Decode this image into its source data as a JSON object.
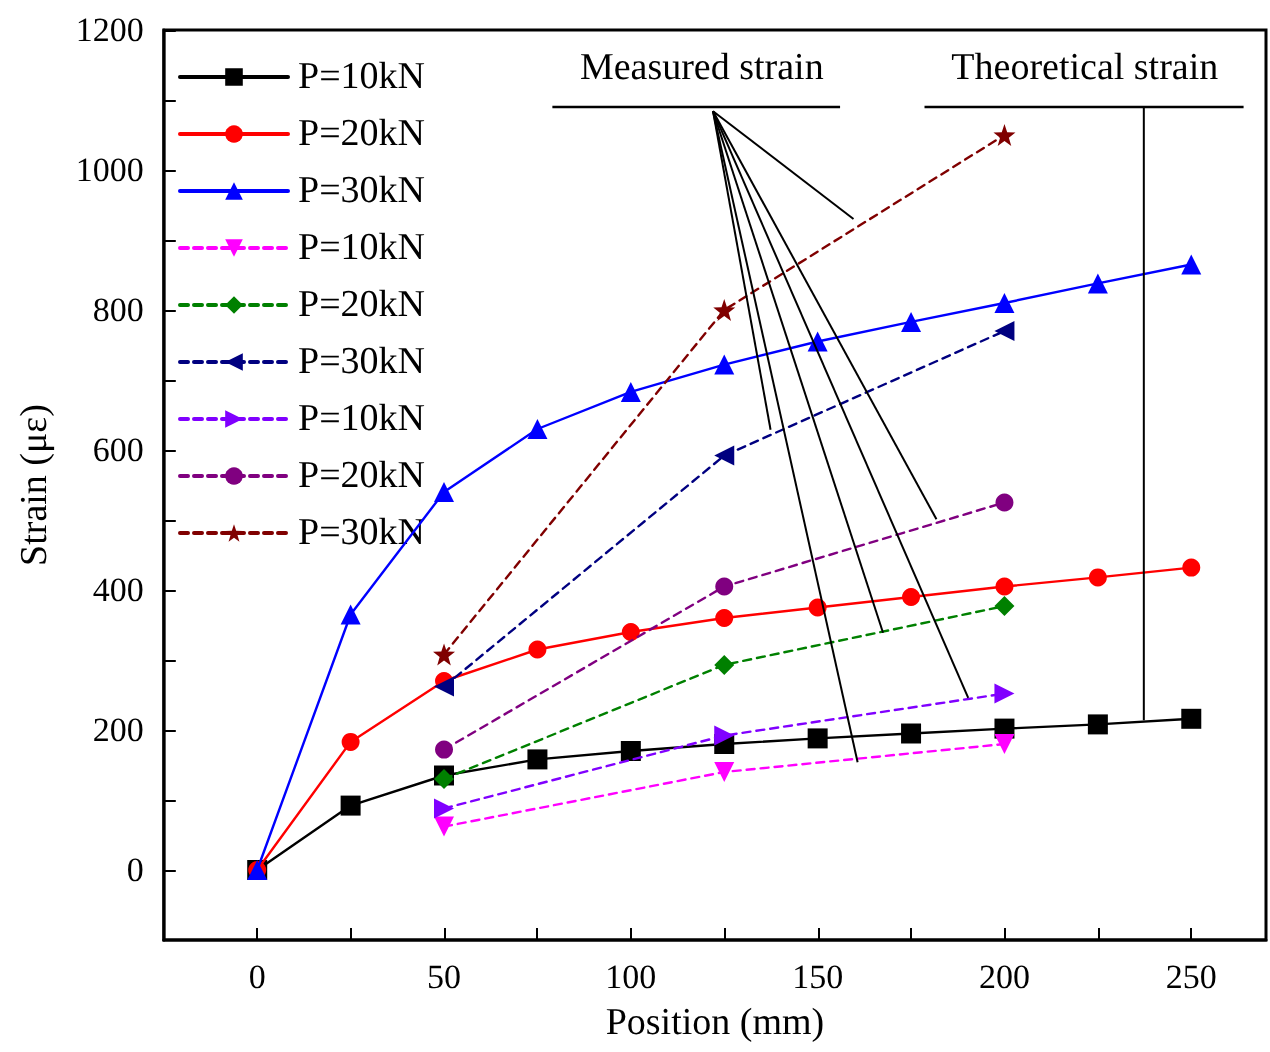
{
  "chart_data": {
    "type": "line",
    "xlabel": "Position (mm)",
    "ylabel": "Strain (με)",
    "xlim": [
      -25,
      270
    ],
    "ylim": [
      -100,
      1200
    ],
    "xticks": [
      0,
      {
        "value": 25,
        "label": null
      },
      50,
      {
        "value": 75,
        "label": null
      },
      100,
      {
        "value": 125,
        "label": null
      },
      150,
      {
        "value": 175,
        "label": null
      },
      200,
      {
        "value": 225,
        "label": null
      },
      250
    ],
    "yticks": [
      0,
      {
        "value": 100,
        "label": null
      },
      200,
      {
        "value": 300,
        "label": null
      },
      400,
      {
        "value": 500,
        "label": null
      },
      600,
      {
        "value": 700,
        "label": null
      },
      800,
      {
        "value": 900,
        "label": null
      },
      1000,
      {
        "value": 1100,
        "label": null
      },
      1200
    ],
    "grid": false,
    "legend": "top left",
    "annotations": [
      {
        "text": "Measured strain",
        "x": 159.6,
        "y": 930
      },
      {
        "text": "Theoretical strain",
        "x": 237.3,
        "y": 214
      }
    ],
    "series": [
      {
        "name": "P=10kN",
        "color": "#000000",
        "marker": "square",
        "line_style": "solid",
        "x": [
          0,
          25,
          50,
          75,
          100,
          125,
          150,
          175,
          200,
          225,
          250
        ],
        "values": [
          0,
          92,
          135,
          158,
          170,
          180,
          188,
          195,
          202,
          208,
          216
        ]
      },
      {
        "name": "P=20kN",
        "color": "#ff0000",
        "marker": "circle",
        "line_style": "solid",
        "x": [
          0,
          25,
          50,
          75,
          100,
          125,
          150,
          175,
          200,
          225,
          250
        ],
        "values": [
          0,
          183,
          270,
          315,
          340,
          360,
          375,
          390,
          405,
          418,
          432
        ]
      },
      {
        "name": "P=30kN",
        "color": "#0000ff",
        "marker": "triangle",
        "line_style": "solid",
        "x": [
          0,
          25,
          50,
          75,
          100,
          125,
          150,
          175,
          200,
          225,
          250
        ],
        "values": [
          0,
          365,
          540,
          630,
          683,
          722,
          755,
          783,
          810,
          838,
          865
        ]
      },
      {
        "name": "P=10kN",
        "color": "#ff00ff",
        "marker": "triangle-down",
        "line_style": "dashed",
        "x": [
          50,
          125,
          200
        ],
        "values": [
          62,
          140,
          180
        ]
      },
      {
        "name": "P=20kN",
        "color": "#008000",
        "marker": "diamond",
        "line_style": "dashed",
        "x": [
          50,
          125,
          200
        ],
        "values": [
          130,
          293,
          377
        ]
      },
      {
        "name": "P=30kN",
        "color": "#000080",
        "marker": "triangle-left",
        "line_style": "dashed",
        "x": [
          50,
          125,
          200
        ],
        "values": [
          262,
          592,
          770
        ]
      },
      {
        "name": "P=10kN",
        "color": "#8000ff",
        "marker": "triangle-right",
        "line_style": "dashed",
        "x": [
          50,
          125,
          200
        ],
        "values": [
          88,
          192,
          252
        ]
      },
      {
        "name": "P=20kN",
        "color": "#800080",
        "marker": "circle",
        "line_style": "dashed",
        "x": [
          50,
          125,
          200
        ],
        "values": [
          172,
          405,
          525
        ]
      },
      {
        "name": "P=30kN",
        "color": "#800000",
        "marker": "star",
        "line_style": "dashed",
        "x": [
          50,
          125,
          200
        ],
        "values": [
          308,
          800,
          1050
        ]
      }
    ]
  }
}
